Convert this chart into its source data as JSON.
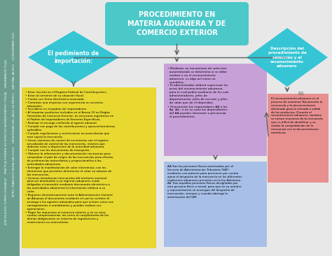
{
  "title": "PROCEDIMIENTO EN\nMATERIA ADUANERA Y DE\nCOMERCIO EXTERIOR",
  "title_bg": "#4DC8C8",
  "sidebar_bg": "#6B9E8E",
  "sidebar_line1": "JOSÉ DE JESÚS TORRES GONZÁLEZ",
  "sidebar_line2": "PRÁCTICA FORENSE DE DERECHO ADMINISTRATIVO Y FISCAL",
  "sidebar_line3": "DIAGRAMA DE FLUJO",
  "sidebar_line4": "MTRO. FRANCISCO MORA GALLEGOS",
  "sidebar_line5": "UNIVERSIDAD DEL VALLE DE MÉXICO",
  "sidebar_line6": "ZAPOPAN, JALISCO",
  "sidebar_line7": "14 NOVIEMBRE 2022",
  "diamond1_text": "El pedimiento de\nimportación:",
  "diamond_color": "#35C5D5",
  "diamond2_text": "Descripción del\nprocedimiento de\nselección y el\nreconocimiento\naduanero",
  "box_yellow_color": "#E8D830",
  "box_yellow_text": "• Estar inscrito en el Registro Federal de Contribuyentes.\n• Estar al corriente de su situación fiscal.\n• Contar con firma electrónica avanzada.\n• Contratar una empresa con experiencia en servicios\n  aduanales.\n• Inscribirse en el padrón de importadores.\n• Al importar productos incluidos en el Anexo 10 en Reglas\n  Generales de Comercio Exterior, es necesario registrarse en\n  el Padrón de Importadores de Sectores Específicos.\n• Realizar el encargo conferido al agente aduanal.\n• Cumplir con pago de las contribuciones y aprovechamientos\n  aplicables.\n• Cumplir regulaciones y restricciones no arancelarias que\n  esté sujeta la mercancía.\n• Llevar sistemas de control de inventarios con el registro\n  actualizado de control de las mercancías, mismos que\n  deberán estar a disposición de la autoridad aduanera.\n• Cumplir con los documentos de transporte.\n• Obtener la información y documentación necesarios para\n  comprobar el país de origen de las mercancías para efectos\n  de preferencias arancelarias y proporcionarlos a las\n  autoridades aduaneras.\n• Entregar la manifestación de valor electrónica, con los\n  elementos que permitan determinar el valor en aduana de\n  las mercancías.\n• Quienes introduzcan mercancías del territorio nacional\n  para ser destinadas a un régimen aduanero, están\n  obligados a transmitir mediante documento electrónico a\n  las autoridades aduaneras la información relativa a su\n  valor.\n• Registrar electrónicamente ante la Administración General\n  de Aduanas el documento mediante el cual se confiere el\n  encargo a los agentes aduanales para que actúen como sus\n  consignatarios o mandatarios y puedan realizar sus\n  operaciones.\n• Pagar los impuestos al comercio exterior y en su caso,\n  cuotas compensatorias, así como al cumplimiento de las\n  demás obligaciones en materia de regulaciones y\n  restricciones no arancelarias",
  "box_purple_color": "#C8A0D8",
  "box_purple_text": "• Mediante un mecanismo de selección\n  automatizado se determina si se debe\n  realizar o no el reconocimiento\n  aduanero, es algo así como un\n  semáforo.\n• El administrador deberá supervisar los\n  actos del reconocimiento aduanero,\n  para lo cual podrá auxiliarse de los sub-\n  administradores, jefes de\n  departamento, jefes de sección y jefes\n  de salas que de él dependan.\n• Únicamente los importadores AA o los\n  Ap. Ad., o en su caso los dependientes\n  del AA pueden intervenir o presenciar\n  el procedimiento.",
  "box_red_color": "#E89090",
  "box_red_text": "El reconocimiento aduanero es el\nproceso de examinar físicamente la\nmercancía y la documentación\ndeclarada para la entrada o salida\nde los productos. Durante el\nreconocimiento aduanero, también\nse toman muestras de la mercancía\nque es difícil de identificar y se\nrealiza la comprobación de la\nmercancía con la documentación\nmanifiesta.",
  "box_blue_color": "#A8C0E8",
  "box_blue_text": "AA Son las personas físicas autorizadas por el\nServicio de Administración Tributaria (SAT)\nmediante una patente para promover por cuenta\najena el despacho de la mercancía en los diferentes\nregímenes aduaneros previstos en la ley Aduanera.\nAd. Son aquellas personas físicas designadas por\notra persona física o moral, para que en su nombre\ny representación se encargue del despacho de\nmercancías, siempre y cuando obtenga la\nautorización del SAT.",
  "arrow_color": "#606060",
  "bg_color": "#E8E8E8"
}
